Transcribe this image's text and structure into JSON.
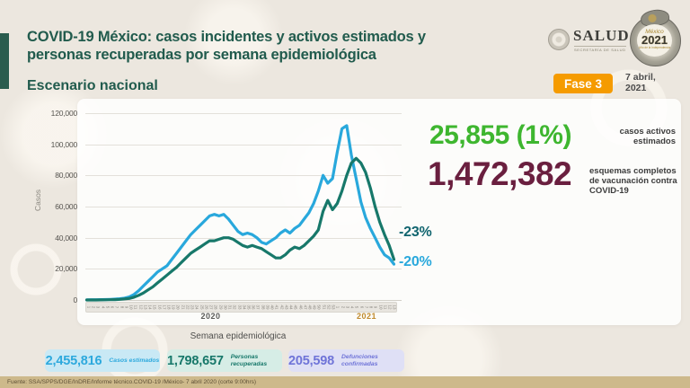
{
  "header": {
    "title_line1": "COVID-19 México: casos incidentes y activos estimados y",
    "title_line2": "personas recuperadas por semana epidemiológica",
    "subtitle": "Escenario nacional",
    "salud_wordmark": "SALUD",
    "salud_subtext": "SECRETARÍA DE SALUD",
    "coin_text_top": "México",
    "coin_text_year": "2021",
    "coin_text_sub": "Año de la Independencia",
    "phase_badge": "Fase 3",
    "date_line1": "7 abril,",
    "date_line2": "2021",
    "accent_color": "#2a5c4e",
    "badge_color": "#f59b00"
  },
  "chart_data": {
    "type": "line",
    "xlabel": "Semana epidemiológica",
    "ylabel": "Casos",
    "ylim": [
      0,
      120000
    ],
    "grid": true,
    "y_ticks": [
      120000,
      100000,
      80000,
      60000,
      40000,
      20000,
      0
    ],
    "y_tick_labels": [
      "120,000",
      "100,000",
      "80,000",
      "60,000",
      "40,000",
      "20,000",
      "0"
    ],
    "x_axis": {
      "groups": [
        {
          "label": "2020",
          "weeks": 53,
          "label_color": "#5a5a58"
        },
        {
          "label": "2021",
          "weeks": 13,
          "label_color": "#c08a2d"
        }
      ]
    },
    "series": [
      {
        "name": "Casos incidentes estimados",
        "color": "#29a8dc",
        "values": [
          100,
          150,
          200,
          250,
          300,
          400,
          600,
          800,
          1200,
          2000,
          3500,
          6000,
          9000,
          12000,
          15000,
          18000,
          20000,
          22000,
          26000,
          30000,
          34000,
          38000,
          42000,
          45000,
          48000,
          51000,
          54000,
          55000,
          54000,
          55000,
          52000,
          48000,
          44000,
          42000,
          43000,
          42000,
          40000,
          37000,
          36000,
          38000,
          40000,
          43000,
          45000,
          43000,
          46000,
          48000,
          52000,
          56000,
          62000,
          70000,
          80000,
          75000,
          78000,
          95000,
          110000,
          112000,
          93000,
          78000,
          63000,
          53000,
          46000,
          40000,
          34000,
          29000,
          27000,
          23000
        ]
      },
      {
        "name": "Personas recuperadas",
        "color": "#17786a",
        "values": [
          0,
          0,
          0,
          50,
          100,
          150,
          250,
          400,
          700,
          1000,
          1800,
          3000,
          4500,
          6500,
          8500,
          11000,
          13500,
          16000,
          18500,
          21000,
          24000,
          27000,
          30000,
          32000,
          34000,
          36000,
          38000,
          38000,
          39000,
          40000,
          40000,
          39000,
          37000,
          35000,
          34000,
          35000,
          34000,
          33000,
          31000,
          29000,
          27000,
          27000,
          29000,
          32000,
          34000,
          33000,
          35000,
          38000,
          41000,
          45000,
          57000,
          64000,
          58000,
          62000,
          70000,
          80000,
          88000,
          91000,
          88000,
          82000,
          72000,
          60000,
          50000,
          42000,
          35000,
          26000
        ]
      }
    ],
    "annotations": [
      {
        "text": "-23%",
        "color": "#11656f",
        "series": "Personas recuperadas"
      },
      {
        "text": "-20%",
        "color": "#29a8dc",
        "series": "Casos incidentes estimados"
      }
    ]
  },
  "highlights": {
    "active_cases": {
      "value": "25,855 (1%)",
      "label": "casos activos estimados",
      "color": "#3eb62f"
    },
    "vaccination": {
      "value": "1,472,382",
      "label": "esquemas completos de vacunación contra COVID-19",
      "color": "#6a1f3f"
    }
  },
  "summary_pills": [
    {
      "value": "2,455,816",
      "label": "Casos estimados",
      "color": "#2da9dd",
      "bg": "#c9e9f5"
    },
    {
      "value": "1,798,657",
      "label": "Personas recuperadas",
      "color": "#17786a",
      "bg": "#d6ede6"
    },
    {
      "value": "205,598",
      "label": "Defunciones confirmadas",
      "color": "#6f74d8",
      "bg": "#dfe0f6"
    }
  ],
  "footer": {
    "source": "Fuente: SSA/SPPS/DGE/InDRE/Informe técnico.COVID-19 /México- 7 abril 2020 (corte 9:00hrs)"
  }
}
